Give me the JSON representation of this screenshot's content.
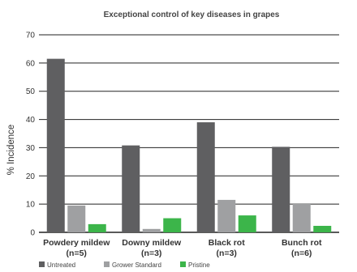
{
  "chart_data": {
    "type": "bar",
    "title": "Exceptional control of key diseases in grapes",
    "xlabel": "",
    "ylabel": "% Incidence",
    "ylim": [
      0,
      70
    ],
    "yticks": [
      0,
      10,
      20,
      30,
      40,
      50,
      60,
      70
    ],
    "grid": true,
    "legend_position": "bottom-left",
    "categories": [
      {
        "name": "Powdery mildew",
        "sub": "(n=5)"
      },
      {
        "name": "Downy mildew",
        "sub": "(n=3)"
      },
      {
        "name": "Black rot",
        "sub": "(n=3)"
      },
      {
        "name": "Bunch rot",
        "sub": "(n=6)"
      }
    ],
    "series": [
      {
        "name": "Untreated",
        "color": "#5f5f61",
        "values": [
          61.5,
          30.8,
          39.0,
          30.3
        ]
      },
      {
        "name": "Grower Standard",
        "color": "#9fa0a2",
        "values": [
          9.5,
          1.2,
          11.5,
          10.3
        ]
      },
      {
        "name": "Pristine",
        "color": "#3cb54a",
        "values": [
          2.9,
          5.0,
          6.0,
          2.3
        ]
      }
    ]
  }
}
